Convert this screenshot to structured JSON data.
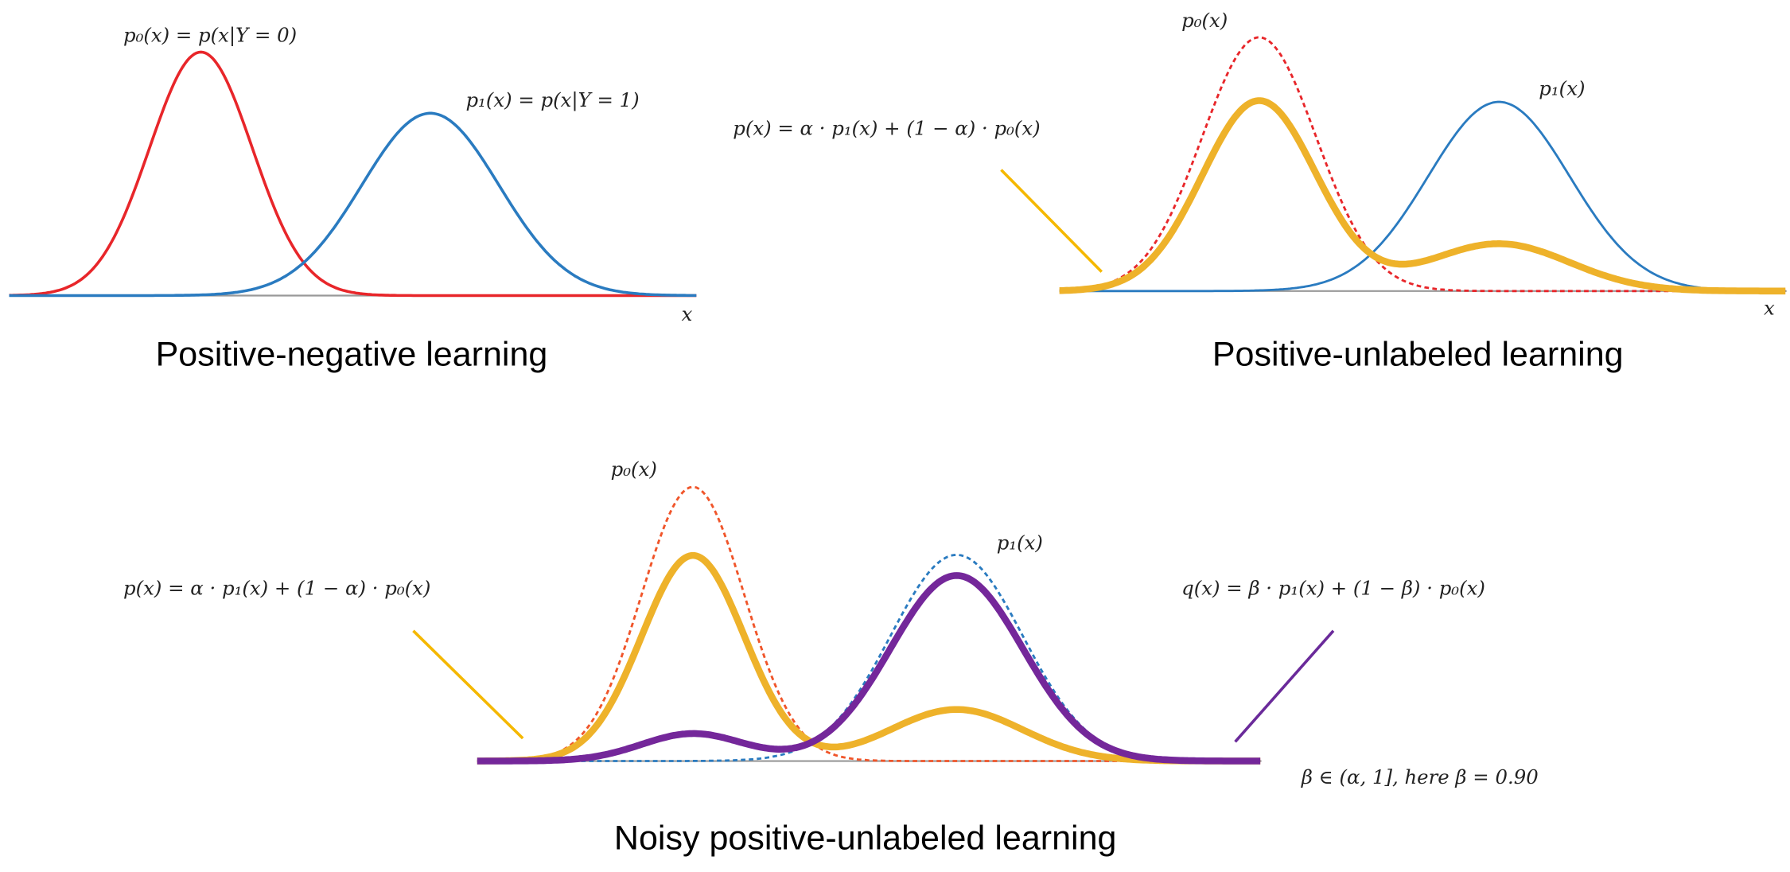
{
  "panels": [
    {
      "title": "Positive-negative learning",
      "labels": [
        "p₀(x) = p(x|Y = 0)",
        "p₁(x) = p(x|Y = 1)",
        "x"
      ]
    },
    {
      "title": "Positive-unlabeled learning",
      "labels": [
        "p₀(x)",
        "p₁(x)",
        "p(x) = α · p₁(x) + (1 − α) · p₀(x)",
        "x"
      ]
    },
    {
      "title": "Noisy positive-unlabeled learning",
      "labels": [
        "p₀(x)",
        "p₁(x)",
        "p(x) = α · p₁(x) + (1 − α) · p₀(x)",
        "q(x) = β · p₁(x) + (1 − β) · p₀(x)",
        "β ∈ (α, 1], here β = 0.90"
      ]
    }
  ]
}
